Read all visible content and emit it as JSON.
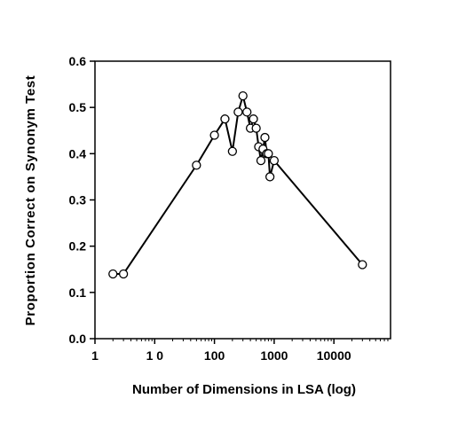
{
  "chart_data": {
    "type": "line",
    "title": "",
    "xlabel": "Number of Dimensions in LSA (log)",
    "ylabel": "Proportion Correct on Synonym Test",
    "xscale": "log",
    "xlim": [
      1,
      10000
    ],
    "ylim": [
      0,
      0.6
    ],
    "x_tick_labels": [
      "1",
      "1 0",
      "100",
      "1000",
      "10000"
    ],
    "x_tick_values": [
      1,
      10,
      100,
      1000,
      10000
    ],
    "y_tick_labels": [
      "0.0",
      "0.1",
      "0.2",
      "0.3",
      "0.4",
      "0.5",
      "0.6"
    ],
    "y_tick_values": [
      0,
      0.1,
      0.2,
      0.3,
      0.4,
      0.5,
      0.6
    ],
    "grid": false,
    "legend": "none",
    "marker": "open-circle",
    "line_color": "#000000",
    "series": [
      {
        "x": [
          2,
          3,
          50,
          100,
          150,
          200,
          250,
          300,
          350,
          400,
          450,
          500,
          550,
          600,
          650,
          700,
          750,
          800,
          850,
          1000,
          30000
        ],
        "y": [
          0.14,
          0.14,
          0.375,
          0.44,
          0.475,
          0.405,
          0.49,
          0.525,
          0.49,
          0.455,
          0.475,
          0.455,
          0.415,
          0.385,
          0.41,
          0.435,
          0.4,
          0.4,
          0.35,
          0.385,
          0.16
        ]
      }
    ]
  }
}
